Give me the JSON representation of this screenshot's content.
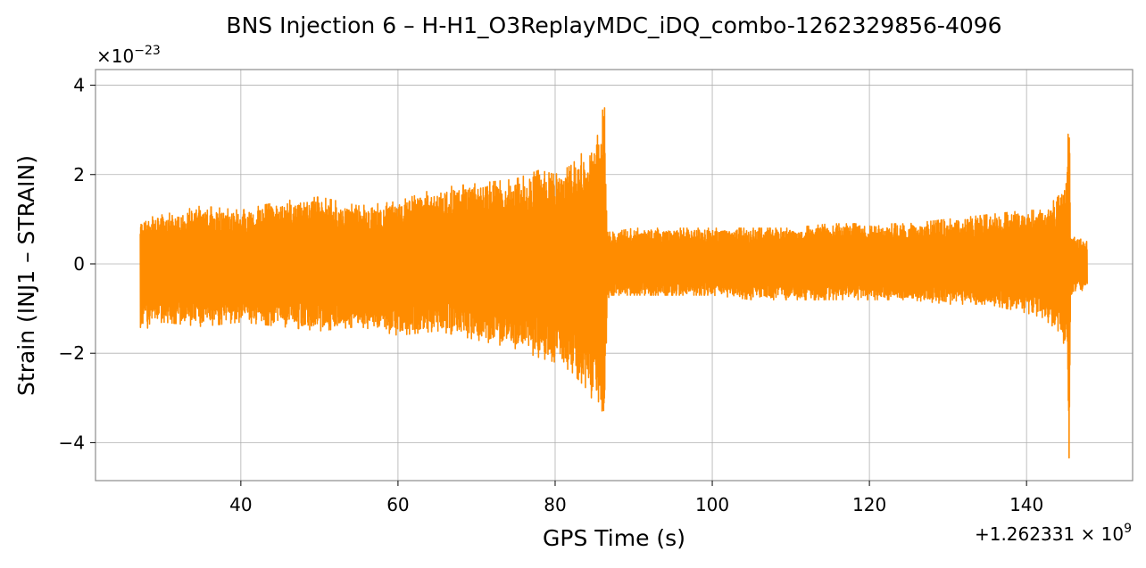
{
  "chart_data": {
    "type": "line",
    "title": "BNS Injection 6 – H-H1_O3ReplayMDC_iDQ_combo-1262329856-4096",
    "xlabel": "GPS Time (s)",
    "ylabel": "Strain (INJ1 – STRAIN)",
    "x_offset_label": "+1.262331 × 10",
    "x_offset_exponent": "9",
    "y_scale_label": "×10",
    "y_scale_exponent": "−23",
    "xlim": [
      21.5,
      153.5
    ],
    "ylim": [
      -4.85,
      4.35
    ],
    "x_ticks": [
      40,
      60,
      80,
      100,
      120,
      140
    ],
    "x_tick_labels": [
      "40",
      "60",
      "80",
      "100",
      "120",
      "140"
    ],
    "y_ticks": [
      -4,
      -2,
      0,
      2,
      4
    ],
    "y_tick_labels": [
      "−4",
      "−2",
      "0",
      "2",
      "4"
    ],
    "grid": true,
    "legend": "none",
    "series": [
      {
        "color": "#ff8c00",
        "x": [
          27.2,
          30,
          35,
          40,
          45,
          50,
          55,
          60,
          65,
          70,
          75,
          78,
          80,
          82,
          84,
          85.5,
          86.3,
          86.6,
          87,
          90,
          95,
          100,
          105,
          110,
          115,
          120,
          125,
          130,
          135,
          140,
          142,
          144,
          145,
          145.4,
          145.6,
          146,
          147,
          147.7
        ],
        "upper": [
          1.0,
          1.1,
          1.3,
          1.2,
          1.4,
          1.5,
          1.3,
          1.4,
          1.7,
          1.8,
          1.9,
          2.1,
          2.0,
          2.2,
          2.6,
          2.9,
          3.7,
          0.8,
          0.7,
          0.8,
          0.8,
          0.8,
          0.8,
          0.8,
          0.9,
          0.9,
          0.9,
          1.0,
          1.1,
          1.2,
          1.2,
          1.5,
          1.8,
          3.95,
          0.7,
          0.6,
          0.55,
          0.5
        ],
        "lower": [
          -1.5,
          -1.3,
          -1.4,
          -1.3,
          -1.4,
          -1.5,
          -1.4,
          -1.6,
          -1.5,
          -1.7,
          -1.9,
          -2.1,
          -2.2,
          -2.4,
          -2.8,
          -3.3,
          -3.6,
          -0.8,
          -0.7,
          -0.7,
          -0.7,
          -0.7,
          -0.8,
          -0.8,
          -0.8,
          -0.8,
          -0.8,
          -0.9,
          -0.9,
          -1.1,
          -1.2,
          -1.5,
          -1.9,
          -4.4,
          -0.7,
          -0.6,
          -0.6,
          -0.5
        ]
      }
    ]
  }
}
